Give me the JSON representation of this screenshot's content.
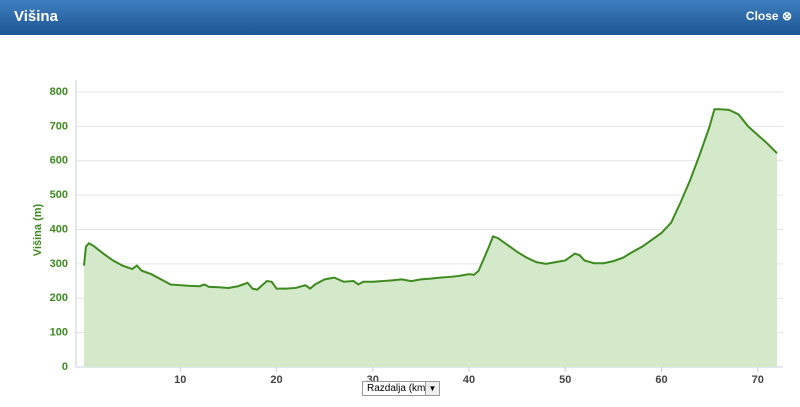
{
  "header": {
    "title": "Višina",
    "close": "Close"
  },
  "chart_data": {
    "type": "area",
    "ylabel": "Višina (m)",
    "xlabel": "Razdalja (km)",
    "color": "#3d8b1f",
    "fill": "#d4e9c9",
    "grid": true,
    "xlim": [
      0,
      72
    ],
    "ylim": [
      0,
      800
    ],
    "xticks": [
      10,
      20,
      30,
      40,
      50,
      60,
      70
    ],
    "yticks": [
      0,
      100,
      200,
      300,
      400,
      500,
      600,
      700,
      800
    ],
    "x": [
      0,
      0.2,
      0.5,
      1,
      2,
      3,
      4,
      5,
      5.5,
      6,
      7,
      8,
      9,
      10,
      11,
      12,
      12.5,
      13,
      14,
      15,
      16,
      17,
      17.5,
      18,
      19,
      19.5,
      20,
      21,
      22,
      23,
      23.5,
      24,
      25,
      26,
      27,
      28,
      28.5,
      29,
      30,
      31,
      32,
      33,
      34,
      35,
      36,
      37,
      38,
      39,
      40,
      40.5,
      41,
      42,
      42.5,
      43,
      44,
      45,
      46,
      47,
      48,
      49,
      50,
      51,
      51.5,
      52,
      53,
      54,
      55,
      56,
      57,
      58,
      59,
      60,
      61,
      62,
      63,
      64,
      65,
      65.5,
      66,
      67,
      68,
      69,
      70,
      71,
      72
    ],
    "values": [
      295,
      350,
      360,
      352,
      330,
      310,
      295,
      285,
      295,
      280,
      270,
      255,
      240,
      238,
      236,
      235,
      240,
      233,
      232,
      230,
      235,
      245,
      228,
      225,
      250,
      248,
      228,
      228,
      230,
      238,
      228,
      240,
      255,
      260,
      248,
      250,
      240,
      248,
      248,
      250,
      252,
      255,
      250,
      255,
      257,
      260,
      262,
      265,
      270,
      268,
      280,
      345,
      380,
      375,
      355,
      335,
      318,
      305,
      300,
      305,
      310,
      330,
      325,
      310,
      302,
      302,
      308,
      318,
      335,
      350,
      370,
      390,
      420,
      480,
      545,
      620,
      700,
      750,
      750,
      748,
      735,
      700,
      675,
      650,
      622
    ]
  }
}
